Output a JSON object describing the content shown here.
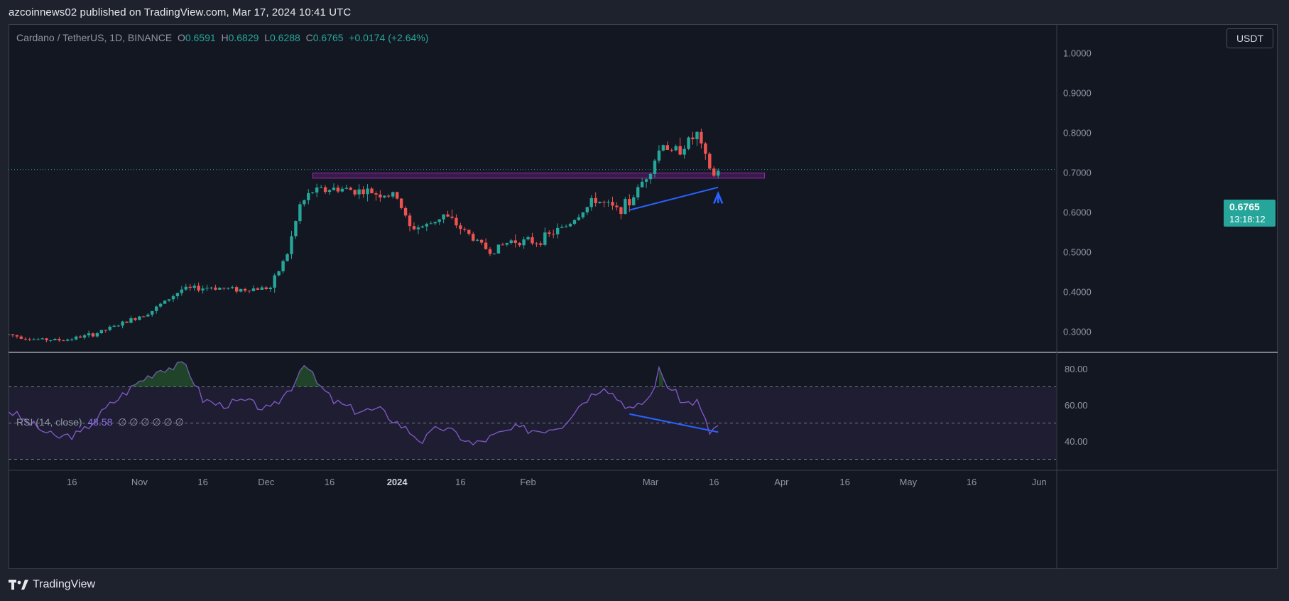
{
  "header": {
    "published_line": "azcoinnews02 published on TradingView.com, Mar 17, 2024 10:41 UTC"
  },
  "legend": {
    "symbol": "Cardano / TetherUS, 1D, BINANCE",
    "open_label": "O",
    "open": "0.6591",
    "high_label": "H",
    "high": "0.6829",
    "low_label": "L",
    "low": "0.6288",
    "close_label": "C",
    "close": "0.6765",
    "change": "+0.0174 (+2.64%)"
  },
  "rsi_legend": {
    "label": "RSI (14, close)",
    "value": "48.58",
    "placeholders": "∅ ∅ ∅ ∅ ∅ ∅"
  },
  "currency_button": "USDT",
  "last_price": {
    "price": "0.6765",
    "countdown": "13:18:12"
  },
  "footer": {
    "brand": "TradingView"
  },
  "colors": {
    "up": "#26a69a",
    "down": "#ef5350",
    "rsi_line": "#7e57c2",
    "zone": "#9c27b0",
    "trendline": "#2962ff",
    "background": "#131722"
  },
  "chart_data": [
    {
      "type": "candlestick",
      "title": "Cardano / TetherUS, 1D, BINANCE",
      "x_ticks": [
        "16",
        "Nov",
        "16",
        "Dec",
        "16",
        "2024",
        "16",
        "Feb",
        "Mar",
        "16",
        "Apr",
        "16",
        "May",
        "16",
        "Jun"
      ],
      "y_ticks": [
        "1.0000",
        "0.9000",
        "0.8000",
        "0.7000",
        "0.6000",
        "0.5000",
        "0.4000",
        "0.3000"
      ],
      "ylim": [
        0.245,
        1.03
      ],
      "x_range": [
        "2023-10-01",
        "2024-06-05"
      ],
      "series": [
        {
          "x": [
            "2023-10-01",
            "2023-10-07",
            "2023-10-14",
            "2023-10-21",
            "2023-10-28",
            "2023-11-04",
            "2023-11-11",
            "2023-11-18",
            "2023-11-25",
            "2023-12-02",
            "2023-12-06",
            "2023-12-09",
            "2023-12-12",
            "2023-12-18",
            "2023-12-25",
            "2024-01-01",
            "2024-01-04",
            "2024-01-08",
            "2024-01-12",
            "2024-01-18",
            "2024-01-23",
            "2024-01-28",
            "2024-02-03",
            "2024-02-10",
            "2024-02-17",
            "2024-02-22",
            "2024-02-25",
            "2024-03-01",
            "2024-03-04",
            "2024-03-06",
            "2024-03-09",
            "2024-03-12",
            "2024-03-14",
            "2024-03-16",
            "2024-03-17"
          ],
          "values": [
            0.262,
            0.25,
            0.248,
            0.262,
            0.29,
            0.322,
            0.375,
            0.381,
            0.375,
            0.38,
            0.466,
            0.586,
            0.622,
            0.629,
            0.621,
            0.608,
            0.53,
            0.535,
            0.563,
            0.513,
            0.47,
            0.498,
            0.495,
            0.535,
            0.601,
            0.575,
            0.593,
            0.68,
            0.746,
            0.717,
            0.738,
            0.764,
            0.703,
            0.659,
            0.6765
          ]
        }
      ],
      "last_price": 0.6765,
      "resistance_zone": [
        0.655,
        0.668
      ],
      "annotations": [
        "ascending support trendline",
        "up arrow"
      ]
    },
    {
      "type": "line",
      "title": "RSI (14, close)",
      "y_ticks": [
        "80.00",
        "60.00",
        "40.00"
      ],
      "ylim": [
        26,
        86
      ],
      "bands": [
        70,
        50,
        30
      ],
      "series": [
        {
          "x": [
            "2023-10-01",
            "2023-10-06",
            "2023-10-12",
            "2023-10-18",
            "2023-10-25",
            "2023-11-01",
            "2023-11-06",
            "2023-11-12",
            "2023-11-16",
            "2023-11-20",
            "2023-11-26",
            "2023-12-02",
            "2023-12-07",
            "2023-12-10",
            "2023-12-13",
            "2023-12-17",
            "2023-12-22",
            "2023-12-28",
            "2024-01-03",
            "2024-01-07",
            "2024-01-11",
            "2024-01-15",
            "2024-01-19",
            "2024-01-24",
            "2024-01-29",
            "2024-02-04",
            "2024-02-09",
            "2024-02-14",
            "2024-02-19",
            "2024-02-22",
            "2024-02-26",
            "2024-03-01",
            "2024-03-03",
            "2024-03-05",
            "2024-03-09",
            "2024-03-12",
            "2024-03-15",
            "2024-03-17"
          ],
          "values": [
            57,
            50,
            42,
            44,
            60,
            73,
            80,
            82,
            63,
            60,
            62,
            57,
            70,
            84,
            72,
            62,
            57,
            57,
            47,
            40,
            48,
            44,
            38,
            43,
            47,
            46,
            49,
            62,
            71,
            64,
            57,
            65,
            79,
            71,
            61,
            62,
            45,
            48.58
          ]
        }
      ],
      "annotations": [
        "descending trendline"
      ]
    }
  ]
}
